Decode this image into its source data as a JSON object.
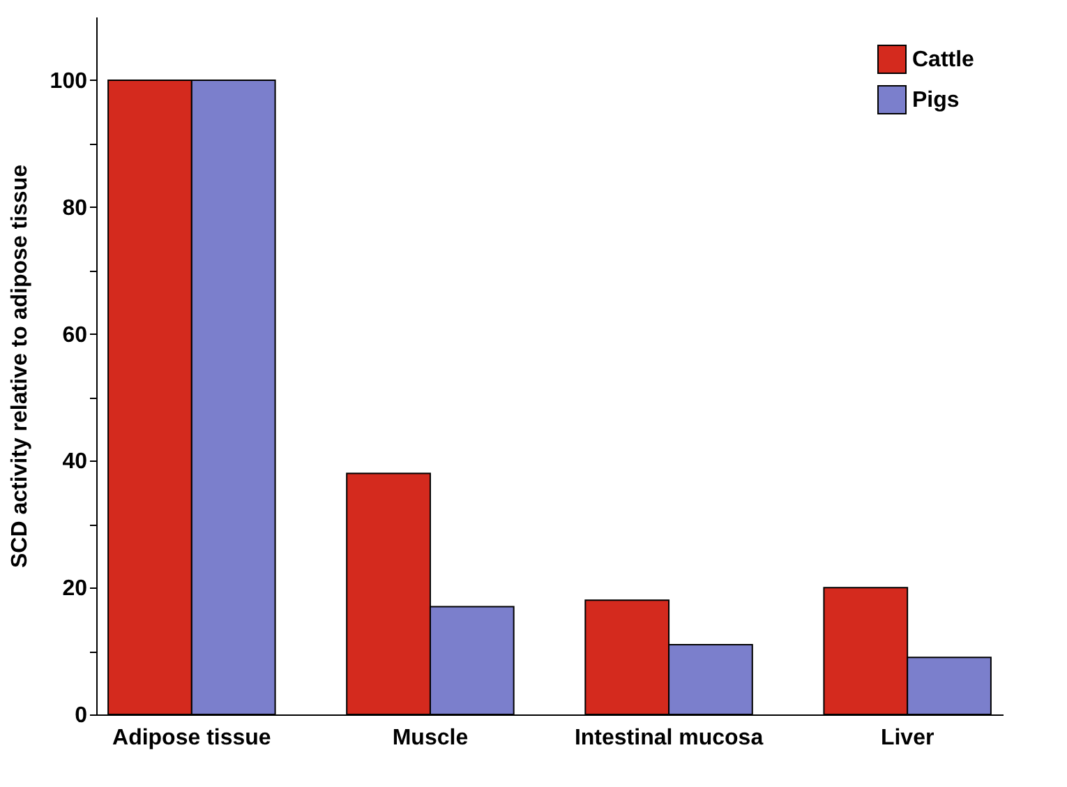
{
  "chart_data": {
    "type": "bar",
    "ylabel": "SCD activity relative to adipose tissue",
    "categories": [
      "Adipose tissue",
      "Muscle",
      "Intestinal mucosa",
      "Liver"
    ],
    "series": [
      {
        "name": "Cattle",
        "color": "#d42a1e",
        "values": [
          100,
          38,
          18,
          20
        ]
      },
      {
        "name": "Pigs",
        "color": "#7b7fcc",
        "values": [
          100,
          17,
          11,
          9
        ]
      }
    ],
    "ylim": [
      0,
      110
    ],
    "yticks": [
      0,
      {
        "value": 10,
        "label": null
      },
      20,
      {
        "value": 30,
        "label": null
      },
      40,
      {
        "value": 50,
        "label": null
      },
      60,
      {
        "value": 70,
        "label": null
      },
      80,
      {
        "value": 90,
        "label": null
      },
      100
    ],
    "grid": false,
    "legend": "top right"
  }
}
